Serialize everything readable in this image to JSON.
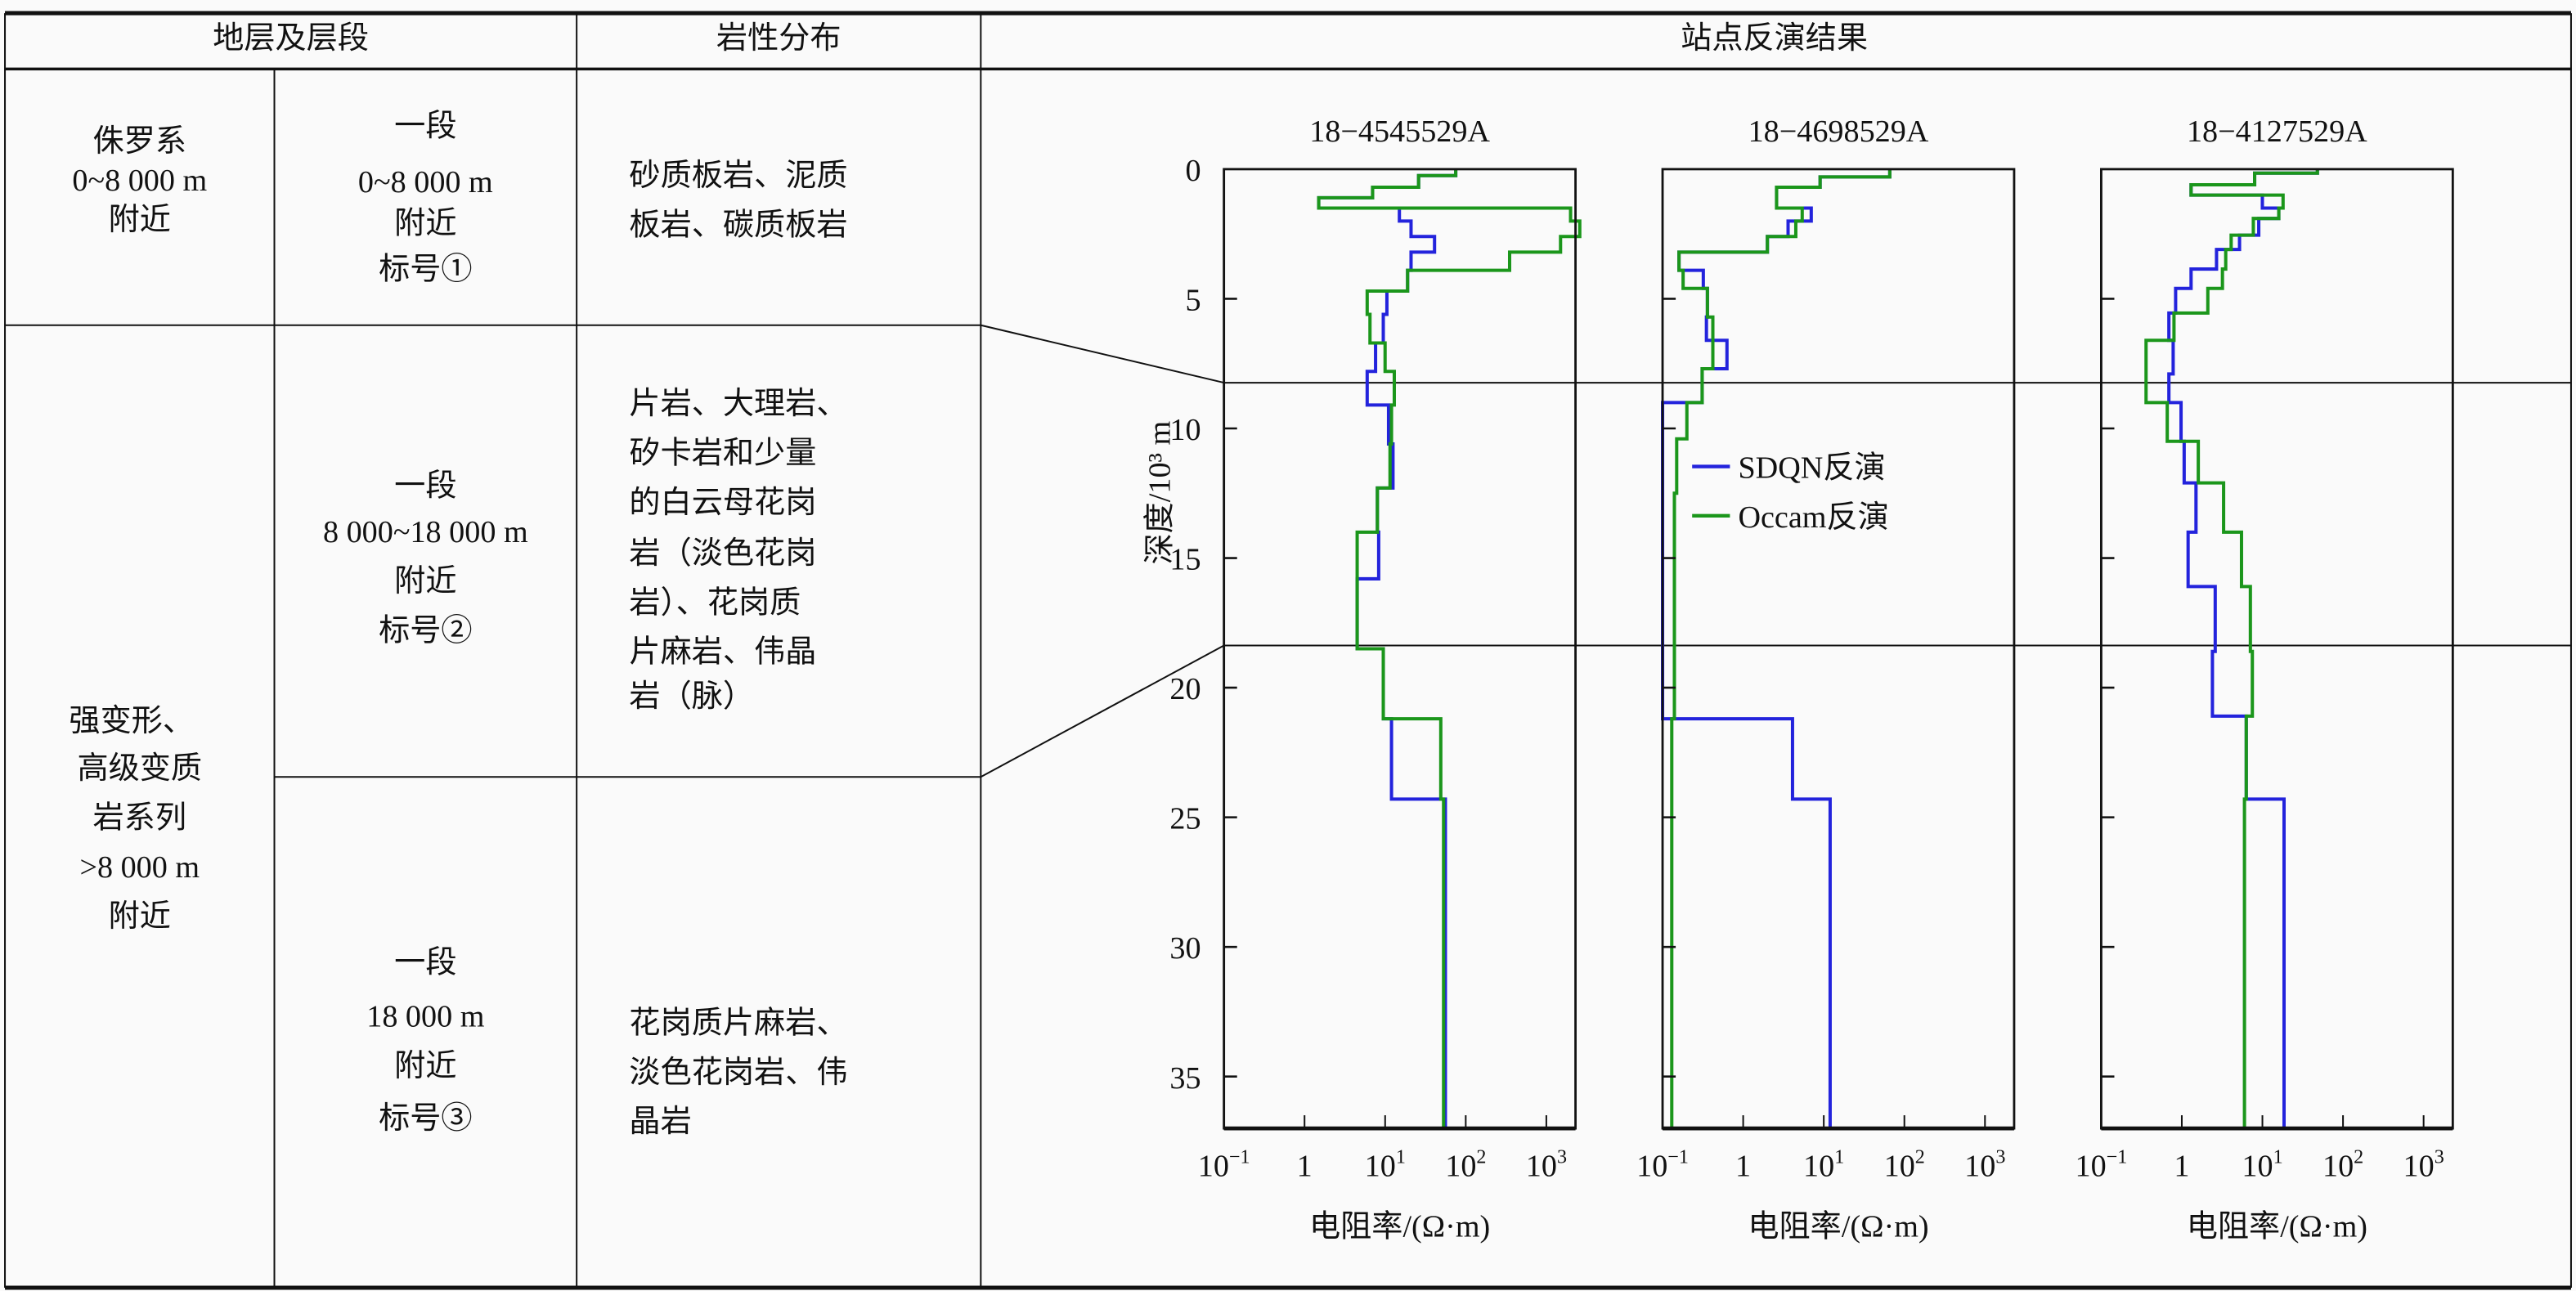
{
  "table": {
    "headers": [
      "地层及层段",
      "岩性分布",
      "站点反演结果"
    ],
    "rows": [
      {
        "stratum": [
          "侏罗系",
          "0~8 000 m",
          "附近"
        ],
        "segment": [
          "一段",
          "0~8 000 m",
          "附近",
          "标号①"
        ],
        "lithology": [
          "砂质板岩、泥质",
          "板岩、碳质板岩"
        ]
      },
      {
        "stratum": [
          "强变形、",
          "高级变质",
          "岩系列",
          ">8 000 m",
          "附近"
        ],
        "segment": [
          "一段",
          "8 000~18 000 m",
          "附近",
          "标号②"
        ],
        "lithology": [
          "片岩、大理岩、",
          "矽卡岩和少量",
          "的白云母花岗",
          "岩（淡色花岗",
          "岩）、花岗质",
          "片麻岩、伟晶",
          "岩（脉）"
        ]
      },
      {
        "segment": [
          "一段",
          "18 000 m",
          "附近",
          "标号③"
        ],
        "lithology": [
          "花岗质片麻岩、",
          "淡色花岗岩、伟",
          "晶岩"
        ]
      }
    ]
  },
  "colors": {
    "sdqn": "#2323dc",
    "occam": "#1b961b"
  },
  "legend": {
    "sdqn": "SDQN反演",
    "occam": "Occam反演"
  },
  "chart_data": [
    {
      "type": "line",
      "title": "18−4545529A",
      "xlabel": "电阻率/(Ω·m)",
      "ylabel": "深度/10³ m",
      "xscale": "log",
      "xlim": [
        0.1,
        2300
      ],
      "ylim": [
        0,
        37
      ],
      "y_inverted": true,
      "yticks": [
        "0",
        "5",
        "10",
        "15",
        "20",
        "25",
        "30",
        "35"
      ],
      "xticks": [
        {
          "base": "10",
          "exp": "−1"
        },
        {
          "base": "1",
          "exp": ""
        },
        {
          "base": "10",
          "exp": "1"
        },
        {
          "base": "10",
          "exp": "2"
        },
        {
          "base": "10",
          "exp": "3"
        }
      ],
      "step_format": "[top_depth_km, resistivity_ohm_m]",
      "series": [
        {
          "name": "SDQN反演",
          "steps": [
            [
              0,
              75
            ],
            [
              0.25,
              26
            ],
            [
              0.7,
              7
            ],
            [
              1.1,
              1.5
            ],
            [
              1.5,
              15
            ],
            [
              2.0,
              21
            ],
            [
              2.6,
              41
            ],
            [
              3.2,
              21
            ],
            [
              3.9,
              19
            ],
            [
              4.7,
              10.5
            ],
            [
              5.6,
              9.5
            ],
            [
              6.7,
              7.6
            ],
            [
              7.8,
              6
            ],
            [
              9.1,
              11
            ],
            [
              10.6,
              12.5
            ],
            [
              12.3,
              8
            ],
            [
              14,
              8.3
            ],
            [
              15.8,
              4.5
            ],
            [
              18.5,
              9.5
            ],
            [
              21.2,
              12
            ],
            [
              24.3,
              56
            ]
          ]
        },
        {
          "name": "Occam反演",
          "steps": [
            [
              0,
              75
            ],
            [
              0.25,
              26
            ],
            [
              0.7,
              7
            ],
            [
              1.1,
              1.5
            ],
            [
              1.5,
              2000
            ],
            [
              2.0,
              2600
            ],
            [
              2.6,
              1500
            ],
            [
              3.2,
              350
            ],
            [
              3.9,
              19
            ],
            [
              4.7,
              6
            ],
            [
              5.6,
              6.5
            ],
            [
              6.7,
              10
            ],
            [
              7.8,
              13
            ],
            [
              9.1,
              12
            ],
            [
              10.6,
              11.5
            ],
            [
              12.3,
              8
            ],
            [
              14,
              4.5
            ],
            [
              18.5,
              9.5
            ],
            [
              21.2,
              49
            ],
            [
              24.3,
              53
            ]
          ]
        }
      ],
      "boundaries_km": [
        8.2,
        18.35
      ]
    },
    {
      "type": "line",
      "title": "18−4698529A",
      "xlabel": "电阻率/(Ω·m)",
      "xscale": "log",
      "xlim": [
        0.1,
        2300
      ],
      "ylim": [
        0,
        37
      ],
      "y_inverted": true,
      "xticks": [
        {
          "base": "10",
          "exp": "−1"
        },
        {
          "base": "1",
          "exp": ""
        },
        {
          "base": "10",
          "exp": "1"
        },
        {
          "base": "10",
          "exp": "2"
        },
        {
          "base": "10",
          "exp": "3"
        }
      ],
      "legend_position": "center",
      "series": [
        {
          "name": "SDQN反演",
          "steps": [
            [
              0,
              66
            ],
            [
              0.3,
              9
            ],
            [
              0.7,
              2.6
            ],
            [
              1.5,
              7
            ],
            [
              2.0,
              3.6
            ],
            [
              2.6,
              2
            ],
            [
              3.2,
              0.16
            ],
            [
              3.9,
              0.32
            ],
            [
              4.6,
              0.36
            ],
            [
              5.7,
              0.35
            ],
            [
              6.6,
              0.63
            ],
            [
              7.7,
              0.31
            ],
            [
              9.0,
              0.1
            ],
            [
              21.2,
              4.1
            ],
            [
              24.3,
              12
            ]
          ]
        },
        {
          "name": "Occam反演",
          "steps": [
            [
              0,
              66
            ],
            [
              0.3,
              9
            ],
            [
              0.7,
              2.6
            ],
            [
              1.5,
              5.4
            ],
            [
              2.0,
              4.5
            ],
            [
              2.6,
              2
            ],
            [
              3.2,
              0.16
            ],
            [
              3.9,
              0.18
            ],
            [
              4.6,
              0.36
            ],
            [
              5.7,
              0.42
            ],
            [
              7.7,
              0.31
            ],
            [
              9.0,
              0.2
            ],
            [
              10.4,
              0.15
            ],
            [
              12.5,
              0.14
            ],
            [
              21.2,
              0.13
            ]
          ]
        }
      ],
      "boundaries_km": [
        8.2,
        18.35
      ]
    },
    {
      "type": "line",
      "title": "18−4127529A",
      "xlabel": "电阻率/(Ω·m)",
      "xscale": "log",
      "xlim": [
        0.1,
        2300
      ],
      "ylim": [
        0,
        37
      ],
      "y_inverted": true,
      "xticks": [
        {
          "base": "10",
          "exp": "−1"
        },
        {
          "base": "1",
          "exp": ""
        },
        {
          "base": "10",
          "exp": "1"
        },
        {
          "base": "10",
          "exp": "2"
        },
        {
          "base": "10",
          "exp": "3"
        }
      ],
      "series": [
        {
          "name": "SDQN反演",
          "steps": [
            [
              0,
              48
            ],
            [
              0.15,
              8
            ],
            [
              0.6,
              1.3
            ],
            [
              1.0,
              10
            ],
            [
              1.5,
              16
            ],
            [
              1.9,
              9
            ],
            [
              2.55,
              5.2
            ],
            [
              3.1,
              2.7
            ],
            [
              3.85,
              1.3
            ],
            [
              4.6,
              0.84
            ],
            [
              5.55,
              0.69
            ],
            [
              6.6,
              0.78
            ],
            [
              7.9,
              0.69
            ],
            [
              9.0,
              0.98
            ],
            [
              10.5,
              1.07
            ],
            [
              12.1,
              1.5
            ],
            [
              14,
              1.2
            ],
            [
              16.1,
              2.6
            ],
            [
              18.6,
              2.4
            ],
            [
              21.1,
              6.3
            ],
            [
              24.3,
              18.6
            ]
          ]
        },
        {
          "name": "Occam反演",
          "steps": [
            [
              0,
              48
            ],
            [
              0.15,
              8
            ],
            [
              0.6,
              1.3
            ],
            [
              1.0,
              18
            ],
            [
              1.5,
              16
            ],
            [
              1.9,
              7.7
            ],
            [
              2.55,
              4.1
            ],
            [
              3.1,
              3.5
            ],
            [
              3.85,
              3.2
            ],
            [
              4.6,
              2.1
            ],
            [
              5.55,
              0.8
            ],
            [
              6.6,
              0.36
            ],
            [
              9.0,
              0.66
            ],
            [
              10.5,
              1.6
            ],
            [
              12.1,
              3.3
            ],
            [
              14,
              5.5
            ],
            [
              16.1,
              7.1
            ],
            [
              18.6,
              7.5
            ],
            [
              21.1,
              6.3
            ],
            [
              24.3,
              6
            ]
          ]
        }
      ],
      "boundaries_km": [
        8.2,
        18.35
      ]
    }
  ]
}
